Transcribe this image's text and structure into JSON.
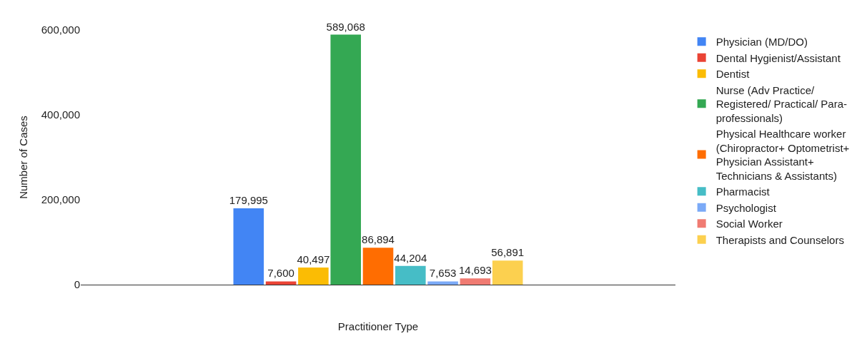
{
  "chart_data": {
    "type": "bar",
    "xlabel": "Practitioner Type",
    "ylabel": "Number of Cases",
    "categories": [
      null
    ],
    "series": [
      {
        "name": "Physician (MD/DO)",
        "color": "#4285f4",
        "values": [
          179995
        ],
        "value_labels": [
          "179,995"
        ]
      },
      {
        "name": "Dental Hygienist/Assistant",
        "color": "#ea4335",
        "values": [
          7600
        ],
        "value_labels": [
          "7,600"
        ]
      },
      {
        "name": "Dentist",
        "color": "#fbbc04",
        "values": [
          40497
        ],
        "value_labels": [
          "40,497"
        ]
      },
      {
        "name": "Nurse (Adv Practice/ Registered/ Practical/ Para-professionals)",
        "color": "#34a853",
        "values": [
          589068
        ],
        "value_labels": [
          "589,068"
        ]
      },
      {
        "name": "Physical Healthcare worker (Chiropractor+ Optometrist+ Physician Assistant+ Technicians & Assistants)",
        "color": "#ff6d01",
        "values": [
          86894
        ],
        "value_labels": [
          "86,894"
        ]
      },
      {
        "name": "Pharmacist",
        "color": "#46bdc6",
        "values": [
          44204
        ],
        "value_labels": [
          "44,204"
        ]
      },
      {
        "name": "Psychologist",
        "color": "#7baaf7",
        "values": [
          7653
        ],
        "value_labels": [
          "7,653"
        ]
      },
      {
        "name": "Social Worker",
        "color": "#f07b72",
        "values": [
          14693
        ],
        "value_labels": [
          "14,693"
        ]
      },
      {
        "name": "Therapists and Counselors",
        "color": "#fcd04f",
        "values": [
          56891
        ],
        "value_labels": [
          "56,891"
        ]
      }
    ],
    "ylim": [
      0,
      600000
    ],
    "yticks": [
      {
        "value": 0,
        "label": "0"
      },
      {
        "value": 200000,
        "label": "200,000"
      },
      {
        "value": 400000,
        "label": "400,000"
      },
      {
        "value": 600000,
        "label": "600,000"
      }
    ],
    "legend": "right"
  }
}
